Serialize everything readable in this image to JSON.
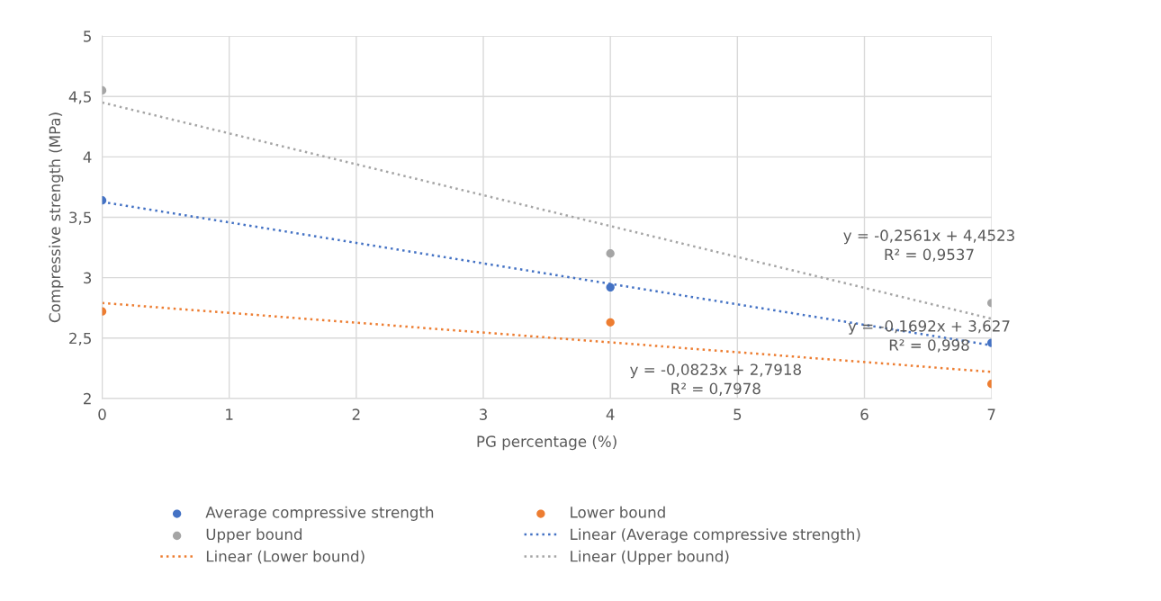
{
  "chart_data": {
    "type": "scatter",
    "xlabel": "PG percentage (%)",
    "ylabel": "Compressive strength (MPa)",
    "xlim": [
      0,
      7
    ],
    "xticks": [
      0,
      1,
      2,
      3,
      4,
      5,
      6,
      7
    ],
    "ylim": [
      2,
      5
    ],
    "yticks": [
      2,
      {
        "value": 2.5,
        "label": "2,5"
      },
      3,
      {
        "value": 3.5,
        "label": "3,5"
      },
      4,
      {
        "value": 4.5,
        "label": "4,5"
      },
      5
    ],
    "grid": true,
    "legend": "bottom",
    "marker": "circle",
    "series": [
      {
        "name": "Average compressive strength",
        "color": "#4472c4",
        "x": [
          0,
          4,
          7
        ],
        "values": [
          3.64,
          2.92,
          2.46
        ]
      },
      {
        "name": "Lower bound",
        "color": "#ed7d31",
        "x": [
          0,
          4,
          7
        ],
        "values": [
          2.72,
          2.63,
          2.12
        ]
      },
      {
        "name": "Upper bound",
        "color": "#a5a5a5",
        "x": [
          0,
          4,
          7
        ],
        "values": [
          4.55,
          3.2,
          2.79
        ]
      },
      {
        "name": "Linear (Average compressive strength)",
        "type": "line",
        "line_style": "dotted",
        "marker": "none",
        "color": "#4472c4",
        "x": [
          0,
          7
        ],
        "values": [
          3.627,
          2.44
        ]
      },
      {
        "name": "Linear (Lower bound)",
        "type": "line",
        "line_style": "dotted",
        "marker": "none",
        "color": "#ed7d31",
        "x": [
          0,
          7
        ],
        "values": [
          2.79,
          2.22
        ]
      },
      {
        "name": "Linear (Upper bound)",
        "type": "line",
        "line_style": "dotted",
        "marker": "none",
        "color": "#a5a5a5",
        "x": [
          0,
          7
        ],
        "values": [
          4.45,
          2.66
        ]
      }
    ],
    "annotations": [
      "y = -0,2561x + 4,4523\nR² = 0,9537",
      "y = -0,1692x + 3,627\nR² = 0,998",
      "y = -0,0823x + 2,7918\nR² = 0,7978"
    ]
  }
}
